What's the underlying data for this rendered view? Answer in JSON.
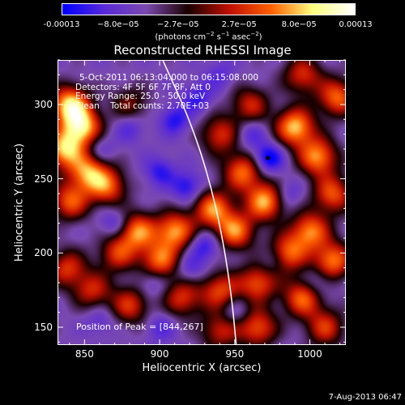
{
  "chart_data": {
    "type": "heatmap",
    "title": "Reconstructed RHESSI Image",
    "xlabel": "Heliocentric X (arcsec)",
    "ylabel": "Heliocentric Y (arcsec)",
    "xlim": [
      832,
      1024
    ],
    "ylim": [
      138,
      330
    ],
    "x_ticks": [
      "850",
      "900",
      "950",
      "1000"
    ],
    "x_tick_values": [
      850,
      900,
      950,
      1000
    ],
    "y_ticks": [
      "150",
      "200",
      "250",
      "300"
    ],
    "y_tick_values": [
      150,
      200,
      250,
      300
    ],
    "colorbar": {
      "tick_labels": [
        "-0.00013",
        "−8.0e−05",
        "−2.7e−05",
        "2.7e−05",
        "8.0e−05",
        "0.00013"
      ],
      "tick_values": [
        -0.00013,
        -8e-05,
        -2.7e-05,
        2.7e-05,
        8e-05,
        0.00013
      ],
      "range": [
        -0.00013,
        0.00013
      ],
      "label_prefix": "(photons cm",
      "label_sup1": "−2",
      "label_mid": " s",
      "label_sup2": "−1",
      "label_mid2": " asec",
      "label_sup3": "−2",
      "label_suffix": ")",
      "colormap": [
        "#0000ff",
        "#5a2ad8",
        "#7b4ab0",
        "#1a0000",
        "#c01000",
        "#ff6000",
        "#ffff80",
        "#ffffff"
      ]
    },
    "annotations": [
      "5-Oct-2011 06:13:04.000 to 06:15:08.000",
      "Detectors: 4F 5F 6F 7F 8F, Att 0",
      "Energy Range: 25.0 - 50.0 keV",
      "Clean    Total counts: 2.70E+03"
    ],
    "peak_label": "Position of Peak = [844,267]",
    "peak": [
      844,
      267
    ],
    "blue_peak": [
      972,
      264
    ],
    "limb_curve": [
      [
        902,
        330
      ],
      [
        920,
        290
      ],
      [
        933,
        250
      ],
      [
        942,
        210
      ],
      [
        948,
        170
      ],
      [
        951,
        138
      ]
    ],
    "hot_spots": [
      [
        840,
        300,
        1.0
      ],
      [
        848,
        285,
        0.95
      ],
      [
        836,
        270,
        0.9
      ],
      [
        852,
        255,
        0.8
      ],
      [
        840,
        235,
        0.7
      ],
      [
        865,
        245,
        0.7
      ],
      [
        885,
        215,
        0.8
      ],
      [
        872,
        200,
        0.6
      ],
      [
        900,
        195,
        0.75
      ],
      [
        910,
        215,
        0.85
      ],
      [
        935,
        230,
        0.8
      ],
      [
        955,
        255,
        0.75
      ],
      [
        950,
        215,
        0.8
      ],
      [
        970,
        235,
        0.9
      ],
      [
        990,
        285,
        0.95
      ],
      [
        1005,
        265,
        0.85
      ],
      [
        1015,
        240,
        0.7
      ],
      [
        1000,
        215,
        0.8
      ],
      [
        985,
        200,
        0.75
      ],
      [
        1015,
        195,
        0.8
      ],
      [
        995,
        170,
        0.75
      ],
      [
        1010,
        150,
        0.6
      ],
      [
        965,
        180,
        0.7
      ],
      [
        940,
        175,
        0.65
      ],
      [
        915,
        170,
        0.6
      ],
      [
        880,
        165,
        0.6
      ],
      [
        855,
        175,
        0.55
      ],
      [
        838,
        190,
        0.6
      ],
      [
        960,
        300,
        0.55
      ],
      [
        940,
        280,
        0.6
      ],
      [
        965,
        150,
        0.7
      ],
      [
        940,
        148,
        0.55
      ],
      [
        1018,
        305,
        0.75
      ],
      [
        995,
        320,
        0.6
      ],
      [
        880,
        300,
        0.4
      ]
    ],
    "cold_spots": [
      [
        910,
        290,
        0.7
      ],
      [
        925,
        305,
        0.6
      ],
      [
        880,
        285,
        0.5
      ],
      [
        900,
        255,
        0.65
      ],
      [
        918,
        245,
        0.75
      ],
      [
        930,
        205,
        0.7
      ],
      [
        920,
        190,
        0.5
      ],
      [
        972,
        264,
        1.0
      ],
      [
        960,
        280,
        0.5
      ],
      [
        985,
        240,
        0.45
      ],
      [
        870,
        220,
        0.55
      ],
      [
        895,
        180,
        0.45
      ],
      [
        950,
        160,
        0.45
      ],
      [
        975,
        195,
        0.4
      ],
      [
        900,
        150,
        0.45
      ],
      [
        860,
        155,
        0.4
      ],
      [
        1005,
        180,
        0.45
      ],
      [
        860,
        270,
        0.45
      ],
      [
        940,
        320,
        0.4
      ]
    ]
  },
  "timestamp": "7-Aug-2013 06:47"
}
